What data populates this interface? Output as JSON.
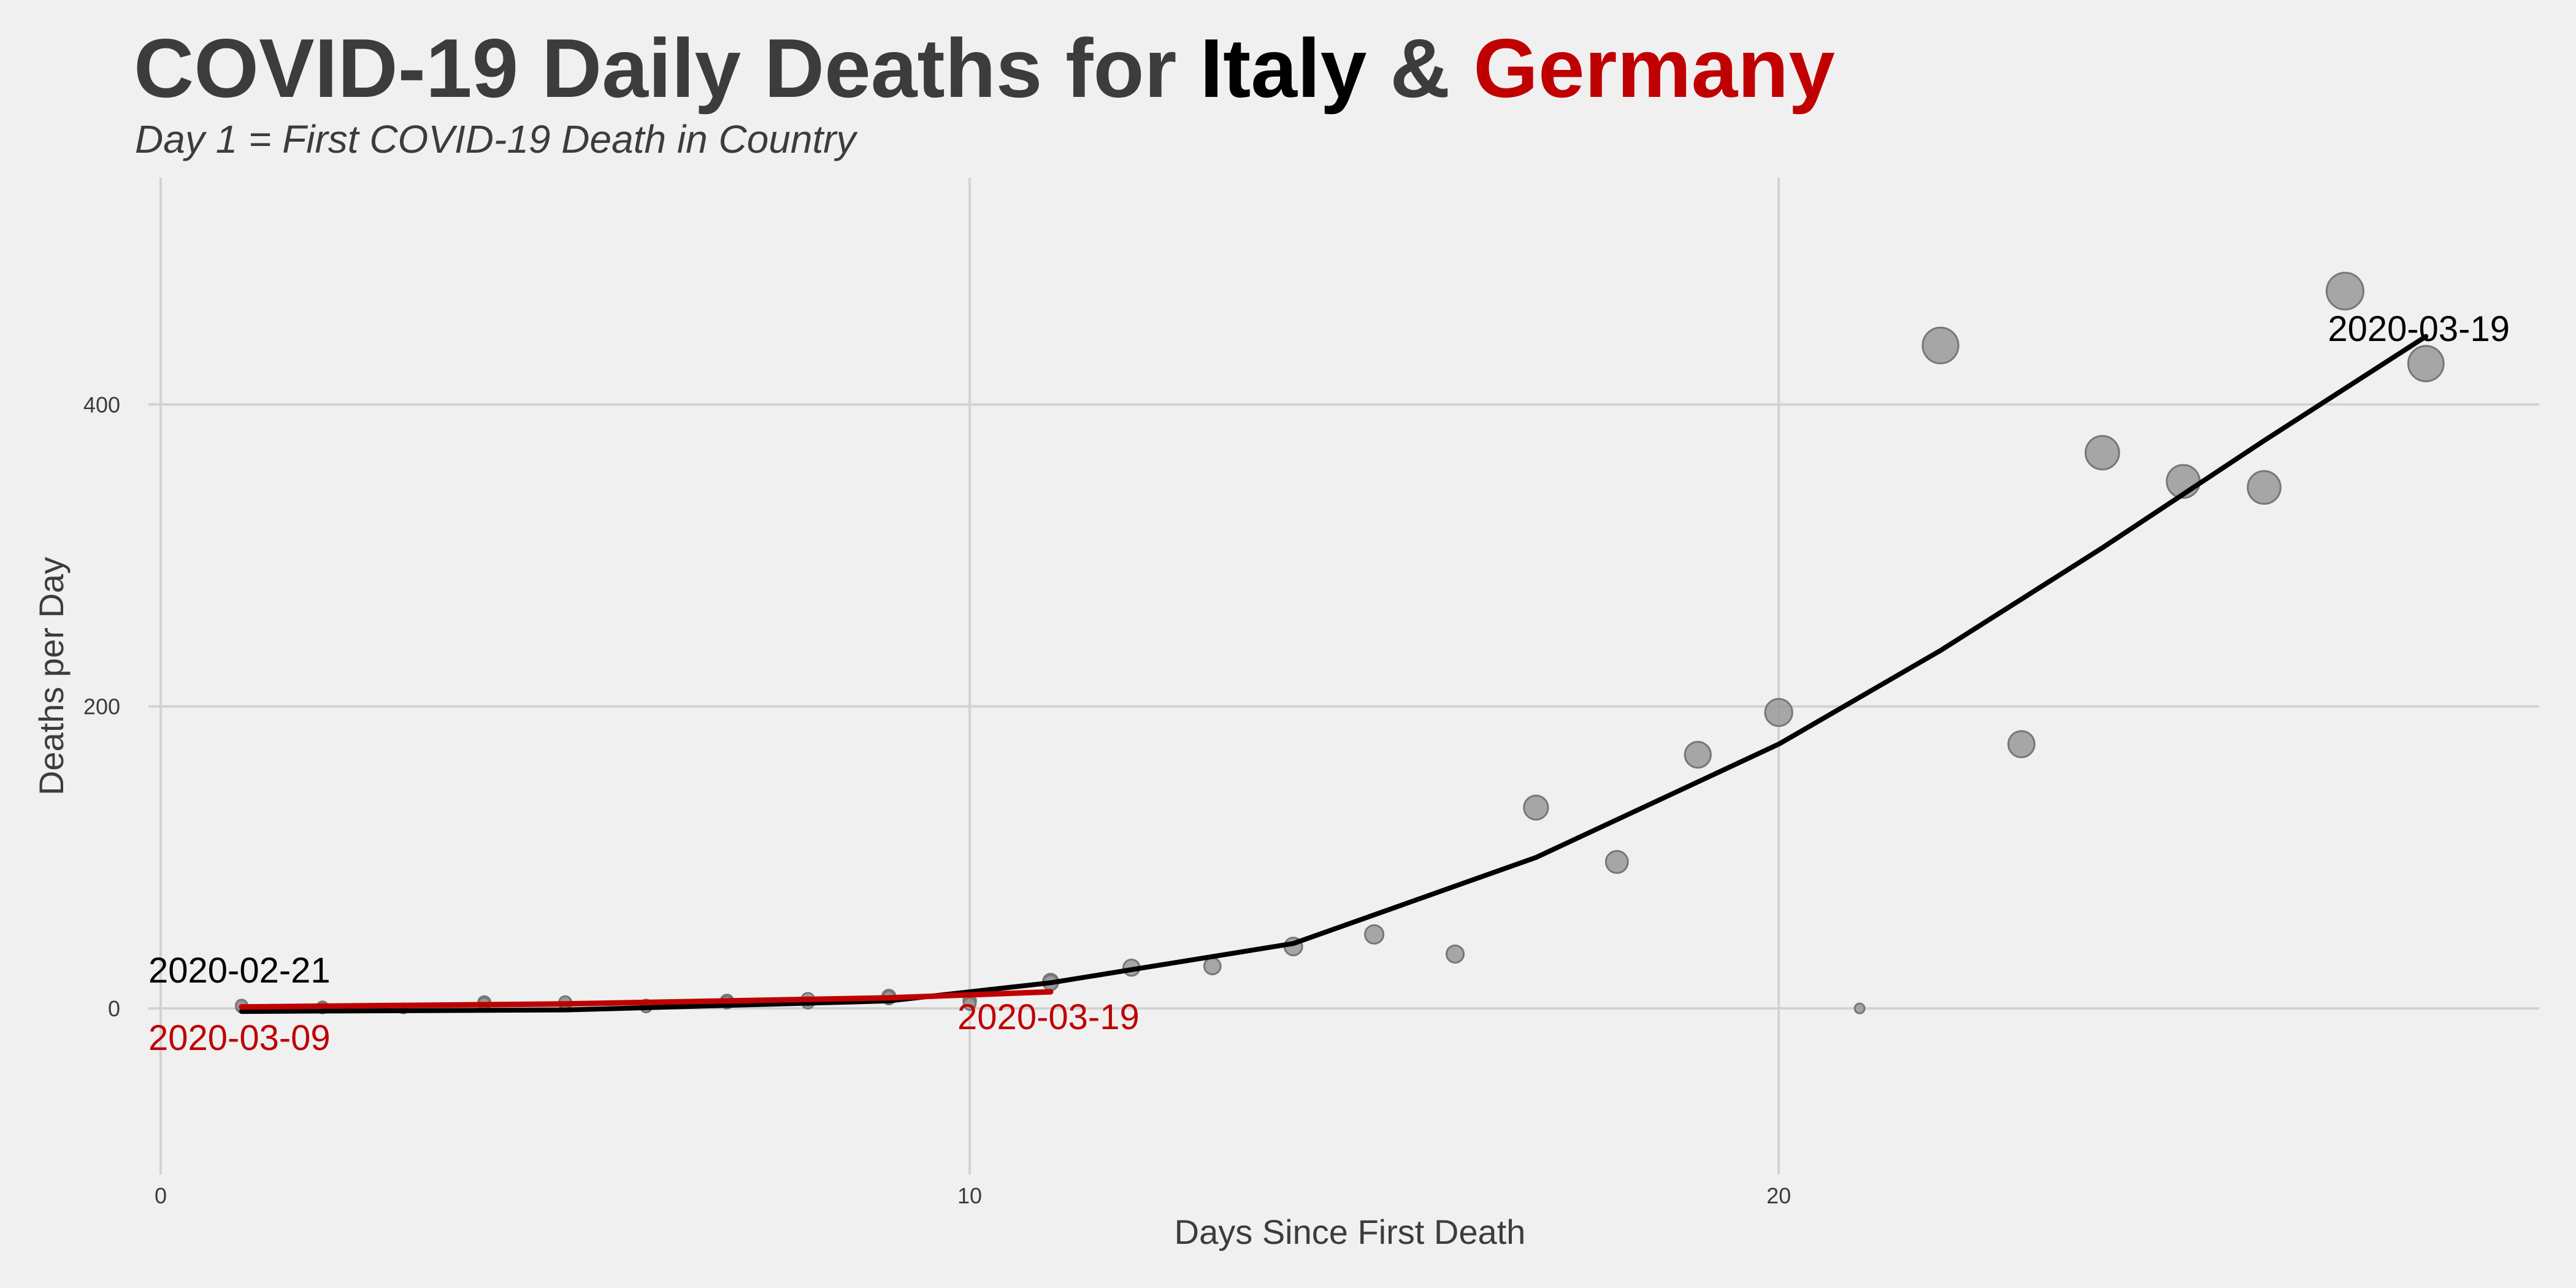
{
  "title": {
    "prefix": "COVID-19 Daily Deaths for ",
    "country_a": "Italy",
    "joiner": " & ",
    "country_b": "Germany"
  },
  "subtitle": "Day 1 = First COVID-19 Death in Country",
  "colors": {
    "background": "#f0f0f0",
    "text": "#3c3c3c",
    "italy": "#000000",
    "germany": "#c00000",
    "points": "#999999",
    "grid": "#d2d2d2"
  },
  "chart_data": {
    "type": "scatter",
    "xlabel": "Days Since First Death",
    "ylabel": "Deaths per Day",
    "xlim": [
      0,
      29.4
    ],
    "ylim": [
      -110,
      550
    ],
    "x_ticks": [
      0,
      10,
      20
    ],
    "y_ticks": [
      0,
      200,
      400
    ],
    "grid": true,
    "legend": "none",
    "series": [
      {
        "name": "Italy",
        "color": "#000000",
        "x": [
          1,
          2,
          3,
          4,
          5,
          6,
          7,
          8,
          9,
          10,
          11,
          12,
          13,
          14,
          15,
          16,
          17,
          18,
          19,
          20,
          21,
          22,
          23,
          24,
          25,
          26,
          27,
          28
        ],
        "y": [
          1,
          1,
          0,
          4,
          3,
          2,
          5,
          4,
          8,
          5,
          18,
          27,
          28,
          41,
          49,
          36,
          133,
          97,
          168,
          196,
          0,
          439,
          175,
          368,
          349,
          345,
          475,
          427
        ],
        "trend": [
          [
            1,
            -2
          ],
          [
            5,
            -1
          ],
          [
            9,
            5
          ],
          [
            11,
            17
          ],
          [
            14,
            43
          ],
          [
            17,
            100
          ],
          [
            20,
            175
          ],
          [
            22,
            237
          ],
          [
            24,
            305
          ],
          [
            26,
            376
          ],
          [
            28,
            445
          ]
        ],
        "start_label": "2020-02-21",
        "end_label": "2020-03-19"
      },
      {
        "name": "Germany",
        "color": "#c00000",
        "x": [
          1,
          2,
          3,
          4,
          5,
          6,
          7,
          8,
          9,
          10,
          11
        ],
        "y": [
          2,
          0,
          0,
          3,
          4,
          1,
          4,
          6,
          7,
          3,
          17
        ],
        "trend": [
          [
            1,
            1
          ],
          [
            3,
            2
          ],
          [
            5,
            3
          ],
          [
            7,
            5
          ],
          [
            9,
            7
          ],
          [
            11,
            11
          ]
        ],
        "start_label": "2020-03-09",
        "end_label": "2020-03-19"
      }
    ]
  }
}
